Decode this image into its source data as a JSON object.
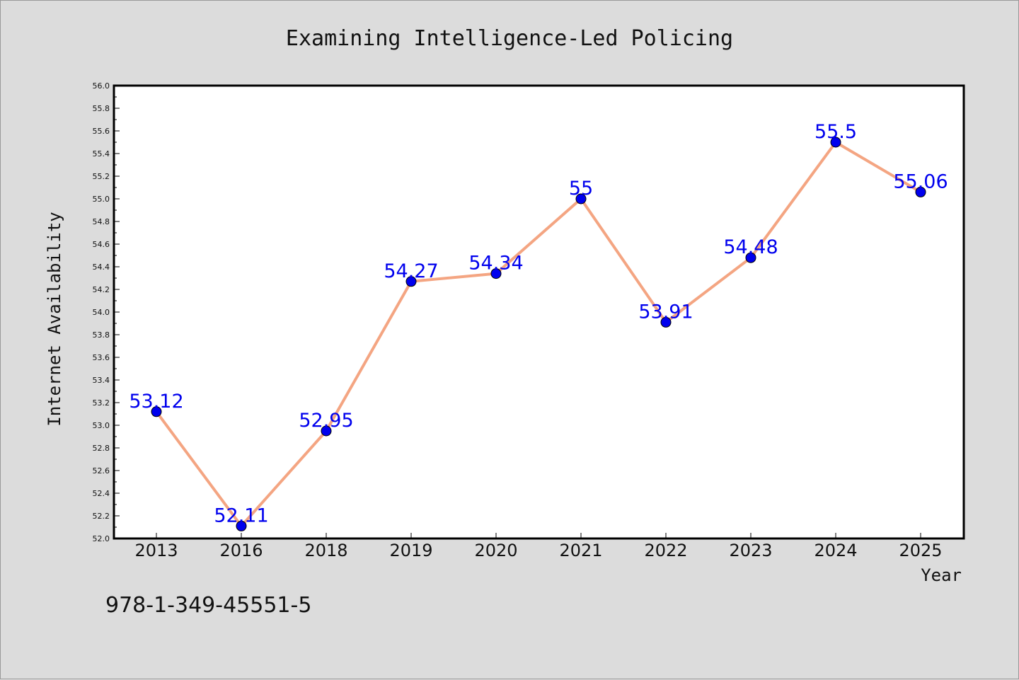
{
  "chart_data": {
    "type": "line",
    "title": "Examining Intelligence-Led Policing",
    "xlabel": "Year",
    "ylabel": "Internet Availability",
    "categories": [
      "2013",
      "2016",
      "2018",
      "2019",
      "2020",
      "2021",
      "2022",
      "2023",
      "2024",
      "2025"
    ],
    "series": [
      {
        "values": [
          53.12,
          52.11,
          52.95,
          54.27,
          54.34,
          55.0,
          53.91,
          54.48,
          55.5,
          55.06
        ]
      }
    ],
    "data_labels": [
      "53.12",
      "52.11",
      "52.95",
      "54.27",
      "54.34",
      "55",
      "53.91",
      "54.48",
      "55.5",
      "55.06"
    ],
    "ylim": [
      52.0,
      56.0
    ],
    "yticks": [
      "52.0",
      "52.2",
      "52.4",
      "52.6",
      "52.8",
      "53.0",
      "53.2",
      "53.4",
      "53.6",
      "53.8",
      "54.0",
      "54.2",
      "54.4",
      "54.6",
      "54.8",
      "55.0",
      "55.2",
      "55.4",
      "55.6",
      "55.8",
      "56.0"
    ],
    "grid": false,
    "colors": {
      "line": "#f4a582",
      "marker": "#0000ee",
      "data_label": "#0000ee",
      "plot_bg": "#ffffff",
      "figure_bg": "#dcdcdc"
    }
  },
  "annotation": {
    "isbn": "978-1-349-45551-5"
  }
}
